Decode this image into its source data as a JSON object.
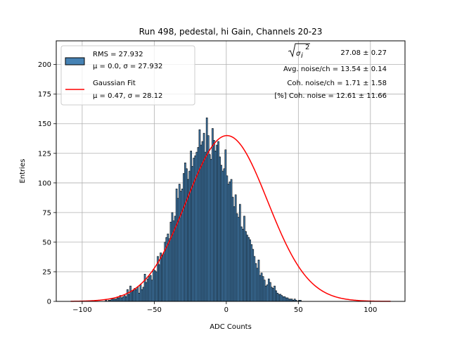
{
  "chart_data": {
    "type": "bar",
    "title": "Run 498, pedestal, hi Gain, Channels 20-23",
    "xlabel": "ADC Counts",
    "ylabel": "Entries",
    "xlim": [
      -118,
      124
    ],
    "ylim": [
      0,
      220
    ],
    "xticks": [
      -100,
      -50,
      0,
      50,
      100
    ],
    "yticks": [
      0,
      25,
      50,
      75,
      100,
      125,
      150,
      175,
      200
    ],
    "xtick_labels": [
      "−100",
      "−50",
      "0",
      "50",
      "100"
    ],
    "ytick_labels": [
      "0",
      "25",
      "50",
      "75",
      "100",
      "125",
      "150",
      "175",
      "200"
    ],
    "grid": true,
    "legend_position": "top-left",
    "bin_width": 1,
    "histogram": {
      "name": "RMS = 27.932",
      "name_line2": "μ = 0.0, σ = 27.932",
      "color": "#4682b4",
      "edge_color": "#000000",
      "bins_start": -108,
      "values": [
        0,
        0,
        0,
        0,
        0,
        0,
        0,
        0,
        0,
        0,
        0,
        0,
        0,
        0,
        0,
        0,
        0,
        0,
        0,
        0,
        0,
        0,
        0,
        0,
        1,
        0,
        1,
        1,
        2,
        2,
        2,
        2,
        3,
        3,
        5,
        3,
        4,
        5,
        4,
        10,
        6,
        13,
        9,
        9,
        11,
        10,
        12,
        7,
        14,
        10,
        12,
        23,
        16,
        19,
        21,
        22,
        18,
        27,
        26,
        25,
        38,
        31,
        41,
        39,
        40,
        50,
        54,
        57,
        53,
        67,
        75,
        68,
        72,
        95,
        87,
        99,
        93,
        95,
        108,
        117,
        112,
        103,
        110,
        127,
        114,
        121,
        123,
        126,
        130,
        145,
        132,
        135,
        142,
        126,
        155,
        140,
        124,
        120,
        146,
        136,
        127,
        132,
        135,
        122,
        115,
        110,
        112,
        128,
        106,
        99,
        101,
        103,
        88,
        80,
        90,
        74,
        71,
        82,
        63,
        61,
        72,
        59,
        56,
        54,
        52,
        48,
        44,
        38,
        32,
        28,
        35,
        22,
        24,
        21,
        18,
        13,
        14,
        19,
        16,
        12,
        11,
        13,
        9,
        7,
        6,
        6,
        5,
        4,
        4,
        3,
        3,
        2,
        2,
        2,
        1,
        2,
        1,
        0,
        1,
        1,
        0,
        0,
        0,
        0,
        0,
        0,
        0,
        0,
        0,
        0,
        0,
        0,
        0,
        0,
        0,
        0,
        0,
        0,
        0,
        0,
        0,
        0,
        0,
        0,
        0,
        0,
        0,
        0,
        0,
        0,
        0,
        0,
        0,
        0,
        0,
        0,
        0,
        0,
        0,
        0,
        0,
        0,
        0,
        0,
        0,
        0,
        0,
        0,
        0,
        0,
        0,
        0,
        0,
        0,
        0,
        0,
        0,
        0,
        0,
        0,
        0,
        0,
        0,
        0,
        0,
        0,
        0,
        0,
        0,
        0
      ]
    },
    "fit": {
      "name": "Gaussian Fit",
      "name_line2": "μ = 0.47, σ = 28.12",
      "color": "#ff0000",
      "mu": 0.47,
      "sigma": 28.12,
      "amplitude": 140,
      "x_range": [
        -108,
        114
      ]
    },
    "annotations": [
      "27.08 ± 0.27",
      "Avg. noise/ch = 13.54 ± 0.14",
      "Coh. noise/ch = 1.71 ± 1.58",
      "[%] Coh. noise = 12.61 ± 11.66"
    ],
    "annotation_sqrt_symbol": "σ",
    "annotation_sqrt_sub": "i",
    "annotation_sqrt_sup": "2"
  }
}
